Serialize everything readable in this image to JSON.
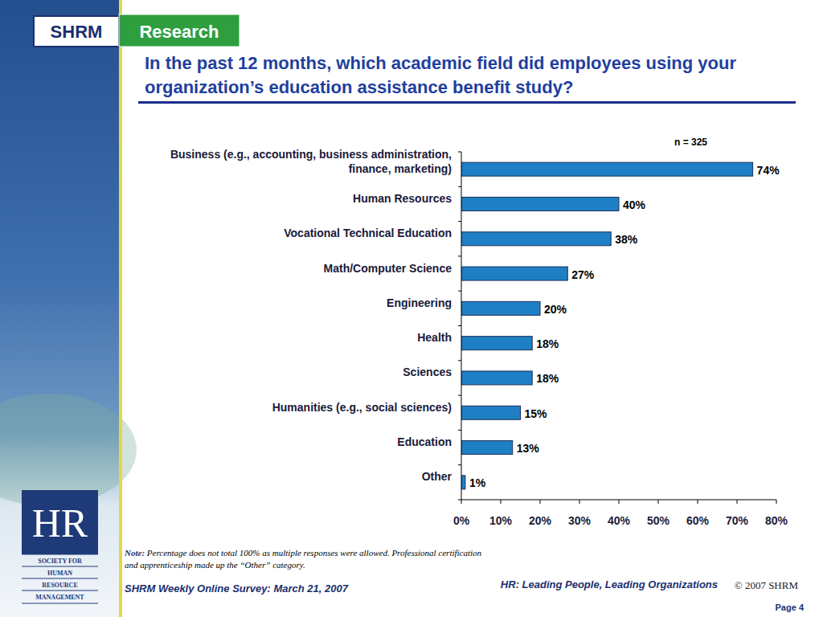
{
  "chart_data": {
    "type": "bar",
    "orientation": "horizontal",
    "title": "In the past 12 months, which academic field did employees using your organization’s education assistance benefit study?",
    "annotations": [
      "n = 325"
    ],
    "categories": [
      "Business (e.g., accounting, business administration, finance, marketing)",
      "Human Resources",
      "Vocational Technical Education",
      "Math/Computer Science",
      "Engineering",
      "Health",
      "Sciences",
      "Humanities (e.g., social sciences)",
      "Education",
      "Other"
    ],
    "values": [
      74,
      40,
      38,
      27,
      20,
      18,
      18,
      15,
      13,
      1
    ],
    "value_labels": [
      "74%",
      "40%",
      "38%",
      "27%",
      "20%",
      "18%",
      "18%",
      "15%",
      "13%",
      "1%"
    ],
    "data_labels": true,
    "color": "#1f7fc4",
    "grid": false,
    "xlim": [
      0,
      80
    ],
    "xticks": [
      {
        "value": 0,
        "label": "0%"
      },
      {
        "value": 10,
        "label": "10%"
      },
      {
        "value": 20,
        "label": "20%"
      },
      {
        "value": 30,
        "label": "30%"
      },
      {
        "value": 40,
        "label": "40%"
      },
      {
        "value": 50,
        "label": "50%"
      },
      {
        "value": 60,
        "label": "60%"
      },
      {
        "value": 70,
        "label": "70%"
      },
      {
        "value": 80,
        "label": "80%"
      }
    ]
  },
  "page": {
    "logo_left": "SHRM",
    "logo_right": "Research",
    "note_label": "Note:",
    "note": "Percentage does not total 100% as multiple responses were allowed. Professional certification and apprenticeship made up the “Other” category.",
    "footer_left": "SHRM Weekly Online Survey: March 21, 2007",
    "tagline": "HR: Leading People, Leading Organizations",
    "copyright": "© 2007 SHRM",
    "page_number": "Page 4",
    "hr_logo": "HR",
    "society": [
      "SOCIETY FOR",
      "HUMAN",
      "RESOURCE",
      "MANAGEMENT"
    ]
  }
}
